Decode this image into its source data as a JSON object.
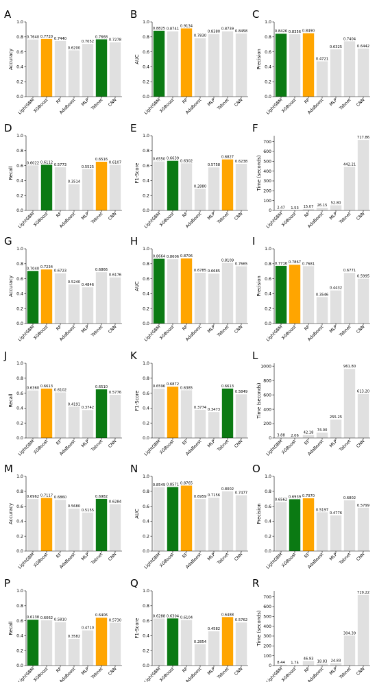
{
  "colors": {
    "default": "#e0e0e0",
    "best": "#0b7a13",
    "second": "#ffa500"
  },
  "chart_data": [
    {
      "type": "bar",
      "letter": "A",
      "ylabel": "Accuracy",
      "ylim": [
        0,
        1
      ],
      "yticks": [
        "0.0",
        "0.2",
        "0.4",
        "0.6",
        "0.8",
        "1.0"
      ],
      "categories": [
        "LightGBM",
        "XGBoost",
        "RF",
        "AdaBoost",
        "MLP",
        "Tabnet",
        "CNN"
      ],
      "values": [
        0.764,
        0.772,
        0.744,
        0.62,
        0.7052,
        0.7668,
        0.7278
      ],
      "labels": [
        "0.7640",
        "0.7720",
        "0.7440",
        "0.6200",
        "0.7052",
        "0.7668",
        "0.7278"
      ],
      "highlight": [
        null,
        "second",
        null,
        null,
        null,
        "best",
        null
      ]
    },
    {
      "type": "bar",
      "letter": "B",
      "ylabel": "AUC",
      "ylim": [
        0,
        1
      ],
      "yticks": [
        "0.0",
        "0.2",
        "0.4",
        "0.6",
        "0.8",
        "1.0"
      ],
      "categories": [
        "LightGBM",
        "XGBoost",
        "RF",
        "AdaBoost",
        "MLP",
        "Tabnet",
        "CNN"
      ],
      "values": [
        0.8825,
        0.8741,
        0.9134,
        0.783,
        0.838,
        0.8739,
        0.8458
      ],
      "labels": [
        "0.8825",
        "0.8741",
        "0.9134",
        "0.7830",
        "0.8380",
        "0.8739",
        "0.8458"
      ],
      "highlight": [
        "best",
        null,
        "second",
        null,
        null,
        null,
        null
      ]
    },
    {
      "type": "bar",
      "letter": "C",
      "ylabel": "Precision",
      "ylim": [
        0,
        1
      ],
      "yticks": [
        "0.0",
        "0.2",
        "0.4",
        "0.6",
        "0.8",
        "1.0"
      ],
      "categories": [
        "LightGBM",
        "XGBoost",
        "RF",
        "AdaBoost",
        "MLP",
        "Tabnet",
        "CNN"
      ],
      "values": [
        0.8426,
        0.8356,
        0.849,
        0.4721,
        0.6325,
        0.7404,
        0.6442
      ],
      "labels": [
        "0.8426",
        "0.8356",
        "0.8490",
        "0.4721",
        "0.6325",
        "0.7404",
        "0.6442"
      ],
      "highlight": [
        "best",
        null,
        "second",
        null,
        null,
        null,
        null
      ]
    },
    {
      "type": "bar",
      "letter": "D",
      "ylabel": "Recall",
      "ylim": [
        0,
        1
      ],
      "yticks": [
        "0.0",
        "0.2",
        "0.4",
        "0.6",
        "0.8",
        "1.0"
      ],
      "categories": [
        "LightGBM",
        "XGBoost",
        "RF",
        "AdaBoost",
        "MLP",
        "Tabnet",
        "CNN"
      ],
      "values": [
        0.6022,
        0.6112,
        0.5773,
        0.3514,
        0.5525,
        0.6516,
        0.6107
      ],
      "labels": [
        "0.6022",
        "0.6112",
        "0.5773",
        "0.3514",
        "0.5525",
        "0.6516",
        "0.6107"
      ],
      "highlight": [
        null,
        "best",
        null,
        null,
        null,
        "second",
        null
      ]
    },
    {
      "type": "bar",
      "letter": "E",
      "ylabel": "F1-Score",
      "ylim": [
        0,
        1
      ],
      "yticks": [
        "0.0",
        "0.2",
        "0.4",
        "0.6",
        "0.8",
        "1.0"
      ],
      "categories": [
        "LightGBM",
        "XGBoost",
        "RF",
        "AdaBoost",
        "MLP",
        "Tabnet",
        "CNN"
      ],
      "values": [
        0.655,
        0.6639,
        0.6302,
        0.288,
        0.5758,
        0.6827,
        0.6238
      ],
      "labels": [
        "0.6550",
        "0.6639",
        "0.6302",
        "0.2880",
        "0.5758",
        "0.6827",
        "0.6238"
      ],
      "highlight": [
        null,
        "best",
        null,
        null,
        null,
        "second",
        null
      ]
    },
    {
      "type": "bar",
      "letter": "F",
      "ylabel": "Time (seconds)",
      "ylim": [
        0,
        760
      ],
      "yticks": [
        "0",
        "100",
        "200",
        "300",
        "400",
        "500",
        "600",
        "700"
      ],
      "ytickvalues": [
        0,
        100,
        200,
        300,
        400,
        500,
        600,
        700
      ],
      "categories": [
        "LightGBM",
        "XGBoost",
        "RF",
        "AdaBoost",
        "MLP",
        "Tabnet",
        "CNN"
      ],
      "values": [
        2.47,
        1.53,
        15.07,
        26.15,
        52.8,
        442.21,
        717.86
      ],
      "labels": [
        "2.47",
        "1.53",
        "15.07",
        "26.15",
        "52.80",
        "442.21",
        "717.86"
      ],
      "highlight": [
        null,
        null,
        null,
        null,
        null,
        null,
        null
      ]
    },
    {
      "type": "bar",
      "letter": "G",
      "ylabel": "Accuracy",
      "ylim": [
        0,
        1
      ],
      "yticks": [
        "0.0",
        "0.2",
        "0.4",
        "0.6",
        "0.8",
        "1.0"
      ],
      "categories": [
        "LightGBM",
        "XGBoost",
        "RF",
        "AdaBoost",
        "MLP",
        "Tabnet",
        "CNN"
      ],
      "values": [
        0.704,
        0.7234,
        0.6723,
        0.524,
        0.4846,
        0.6866,
        0.6176
      ],
      "labels": [
        "0.7040",
        "0.7234",
        "0.6723",
        "0.5240",
        "0.4846",
        "0.6866",
        "0.6176"
      ],
      "highlight": [
        "best",
        "second",
        null,
        null,
        null,
        null,
        null
      ]
    },
    {
      "type": "bar",
      "letter": "H",
      "ylabel": "AUC",
      "ylim": [
        0,
        1
      ],
      "yticks": [
        "0.0",
        "0.2",
        "0.4",
        "0.6",
        "0.8",
        "1.0"
      ],
      "categories": [
        "LightGBM",
        "XGBoost",
        "RF",
        "AdaBoost",
        "MLP",
        "Tabnet",
        "CNN"
      ],
      "values": [
        0.8664,
        0.8606,
        0.8706,
        0.6785,
        0.6685,
        0.8109,
        0.7665
      ],
      "labels": [
        "0.8664",
        "0.8606",
        "0.8706",
        "0.6785",
        "0.6685",
        "0.8109",
        "0.7665"
      ],
      "highlight": [
        "best",
        null,
        "second",
        null,
        null,
        null,
        null
      ]
    },
    {
      "type": "bar",
      "letter": "I",
      "ylabel": "Precision",
      "ylim": [
        0,
        1
      ],
      "yticks": [
        "0.0",
        "0.2",
        "0.4",
        "0.6",
        "0.8",
        "1.0"
      ],
      "categories": [
        "LightGBM",
        "XGBoost",
        "RF",
        "AdaBoost",
        "MLP",
        "Tabnet",
        "CNN"
      ],
      "values": [
        0.7716,
        0.7867,
        0.7681,
        0.3546,
        0.4432,
        0.6771,
        0.5995
      ],
      "labels": [
        "0.7716",
        "0.7867",
        "0.7681",
        "0.3546",
        "0.4432",
        "0.6771",
        "0.5995"
      ],
      "highlight": [
        "best",
        "second",
        null,
        null,
        null,
        null,
        null
      ]
    },
    {
      "type": "bar",
      "letter": "J",
      "ylabel": "Recall",
      "ylim": [
        0,
        1
      ],
      "yticks": [
        "0.0",
        "0.2",
        "0.4",
        "0.6",
        "0.8",
        "1.0"
      ],
      "categories": [
        "LightGBM",
        "XGBoost",
        "RF",
        "AdaBoost",
        "MLP",
        "Tabnet",
        "CNN"
      ],
      "values": [
        0.636,
        0.6613,
        0.6102,
        0.4191,
        0.3742,
        0.651,
        0.5776
      ],
      "labels": [
        "0.6360",
        "0.6613",
        "0.6102",
        "0.4191",
        "0.3742",
        "0.6510",
        "0.5776"
      ],
      "highlight": [
        null,
        "second",
        null,
        null,
        null,
        "best",
        null
      ]
    },
    {
      "type": "bar",
      "letter": "K",
      "ylabel": "F1-Score",
      "ylim": [
        0,
        1
      ],
      "yticks": [
        "0.0",
        "0.2",
        "0.4",
        "0.6",
        "0.8",
        "1.0"
      ],
      "categories": [
        "LightGBM",
        "XGBoost",
        "RF",
        "AdaBoost",
        "MLP",
        "Tabnet",
        "CNN"
      ],
      "values": [
        0.6596,
        0.6872,
        0.6385,
        0.3774,
        0.3473,
        0.6613,
        0.5849
      ],
      "labels": [
        "0.6596",
        "0.6872",
        "0.6385",
        "0.3774",
        "0.3473",
        "0.6613",
        "0.5849"
      ],
      "highlight": [
        null,
        "second",
        null,
        null,
        null,
        "best",
        null
      ]
    },
    {
      "type": "bar",
      "letter": "L",
      "ylabel": "Time (seconds)",
      "ylim": [
        0,
        1040
      ],
      "yticks": [
        "0",
        "200",
        "400",
        "600",
        "800",
        "1000"
      ],
      "ytickvalues": [
        0,
        200,
        400,
        600,
        800,
        1000
      ],
      "categories": [
        "LightGBM",
        "XGBoost",
        "RF",
        "AdaBoost",
        "MLP",
        "Tabnet",
        "CNN"
      ],
      "values": [
        3.88,
        2.06,
        42.18,
        74.0,
        255.25,
        961.8,
        613.2
      ],
      "labels": [
        "3.88",
        "2.06",
        "42.18",
        "74.00",
        "255.25",
        "961.80",
        "613.20"
      ],
      "highlight": [
        null,
        null,
        null,
        null,
        null,
        null,
        null
      ]
    },
    {
      "type": "bar",
      "letter": "M",
      "ylabel": "Accuracy",
      "ylim": [
        0,
        1
      ],
      "yticks": [
        "0.0",
        "0.2",
        "0.4",
        "0.6",
        "0.8",
        "1.0"
      ],
      "categories": [
        "LightGBM",
        "XGBoost",
        "RF",
        "AdaBoost",
        "MLP",
        "Tabnet",
        "CNN"
      ],
      "values": [
        0.6962,
        0.7117,
        0.686,
        0.568,
        0.5155,
        0.6982,
        0.6284
      ],
      "labels": [
        "0.6962",
        "0.7117",
        "0.6860",
        "0.5680",
        "0.5155",
        "0.6982",
        "0.6284"
      ],
      "highlight": [
        null,
        "second",
        null,
        null,
        null,
        "best",
        null
      ]
    },
    {
      "type": "bar",
      "letter": "N",
      "ylabel": "AUC",
      "ylim": [
        0,
        1
      ],
      "yticks": [
        "0.0",
        "0.2",
        "0.4",
        "0.6",
        "0.8",
        "1.0"
      ],
      "categories": [
        "LightGBM",
        "XGBoost",
        "RF",
        "AdaBoost",
        "MLP",
        "Tabnet",
        "CNN"
      ],
      "values": [
        0.8549,
        0.8571,
        0.8765,
        0.6959,
        0.7156,
        0.8002,
        0.7477
      ],
      "labels": [
        "0.8549",
        "0.8571",
        "0.8765",
        "0.6959",
        "0.7156",
        "0.8002",
        "0.7477"
      ],
      "highlight": [
        null,
        "best",
        "second",
        null,
        null,
        null,
        null
      ]
    },
    {
      "type": "bar",
      "letter": "O",
      "ylabel": "Precision",
      "ylim": [
        0,
        1
      ],
      "yticks": [
        "0.0",
        "0.2",
        "0.4",
        "0.6",
        "0.8",
        "1.0"
      ],
      "categories": [
        "LightGBM",
        "XGBoost",
        "RF",
        "AdaBoost",
        "MLP",
        "Tabnet",
        "CNN"
      ],
      "values": [
        0.6562,
        0.6939,
        0.707,
        0.5197,
        0.4776,
        0.6802,
        0.5799
      ],
      "labels": [
        "0.6562",
        "0.6939",
        "0.7070",
        "0.5197",
        "0.4776",
        "0.6802",
        "0.5799"
      ],
      "highlight": [
        null,
        "best",
        "second",
        null,
        null,
        null,
        null
      ]
    },
    {
      "type": "bar",
      "letter": "P",
      "ylabel": "Recall",
      "ylim": [
        0,
        1
      ],
      "yticks": [
        "0.0",
        "0.2",
        "0.4",
        "0.6",
        "0.8",
        "1.0"
      ],
      "categories": [
        "LightGBM",
        "XGBoost",
        "RF",
        "AdaBoost",
        "MLP",
        "Tabnet",
        "CNN"
      ],
      "values": [
        0.6138,
        0.6062,
        0.581,
        0.3582,
        0.471,
        0.6406,
        0.573
      ],
      "labels": [
        "0.6138",
        "0.6062",
        "0.5810",
        "0.3582",
        "0.4710",
        "0.6406",
        "0.5730"
      ],
      "highlight": [
        "best",
        null,
        null,
        null,
        null,
        "second",
        null
      ]
    },
    {
      "type": "bar",
      "letter": "Q",
      "ylabel": "F1-Score",
      "ylim": [
        0,
        1
      ],
      "yticks": [
        "0.0",
        "0.2",
        "0.4",
        "0.6",
        "0.8",
        "1.0"
      ],
      "categories": [
        "LightGBM",
        "XGBoost",
        "RF",
        "AdaBoost",
        "MLP",
        "Tabnet",
        "CNN"
      ],
      "values": [
        0.6288,
        0.6304,
        0.6104,
        0.2854,
        0.4582,
        0.6488,
        0.5762
      ],
      "labels": [
        "0.6288",
        "0.6304",
        "0.6104",
        "0.2854",
        "0.4582",
        "0.6488",
        "0.5762"
      ],
      "highlight": [
        null,
        "best",
        null,
        null,
        null,
        "second",
        null
      ]
    },
    {
      "type": "bar",
      "letter": "R",
      "ylabel": "Time (seconds)",
      "ylim": [
        0,
        760
      ],
      "yticks": [
        "0",
        "100",
        "200",
        "300",
        "400",
        "500",
        "600",
        "700"
      ],
      "ytickvalues": [
        0,
        100,
        200,
        300,
        400,
        500,
        600,
        700
      ],
      "categories": [
        "LightGBM",
        "XGBoost",
        "RF",
        "AdaBoost",
        "MLP",
        "Tabnet",
        "CNN"
      ],
      "values": [
        8.44,
        1.75,
        46.93,
        18.83,
        24.83,
        304.39,
        719.22
      ],
      "labels": [
        "8.44",
        "1.75",
        "46.93",
        "18.83",
        "24.83",
        "304.39",
        "719.22"
      ],
      "highlight": [
        null,
        null,
        null,
        null,
        null,
        null,
        null
      ]
    }
  ]
}
